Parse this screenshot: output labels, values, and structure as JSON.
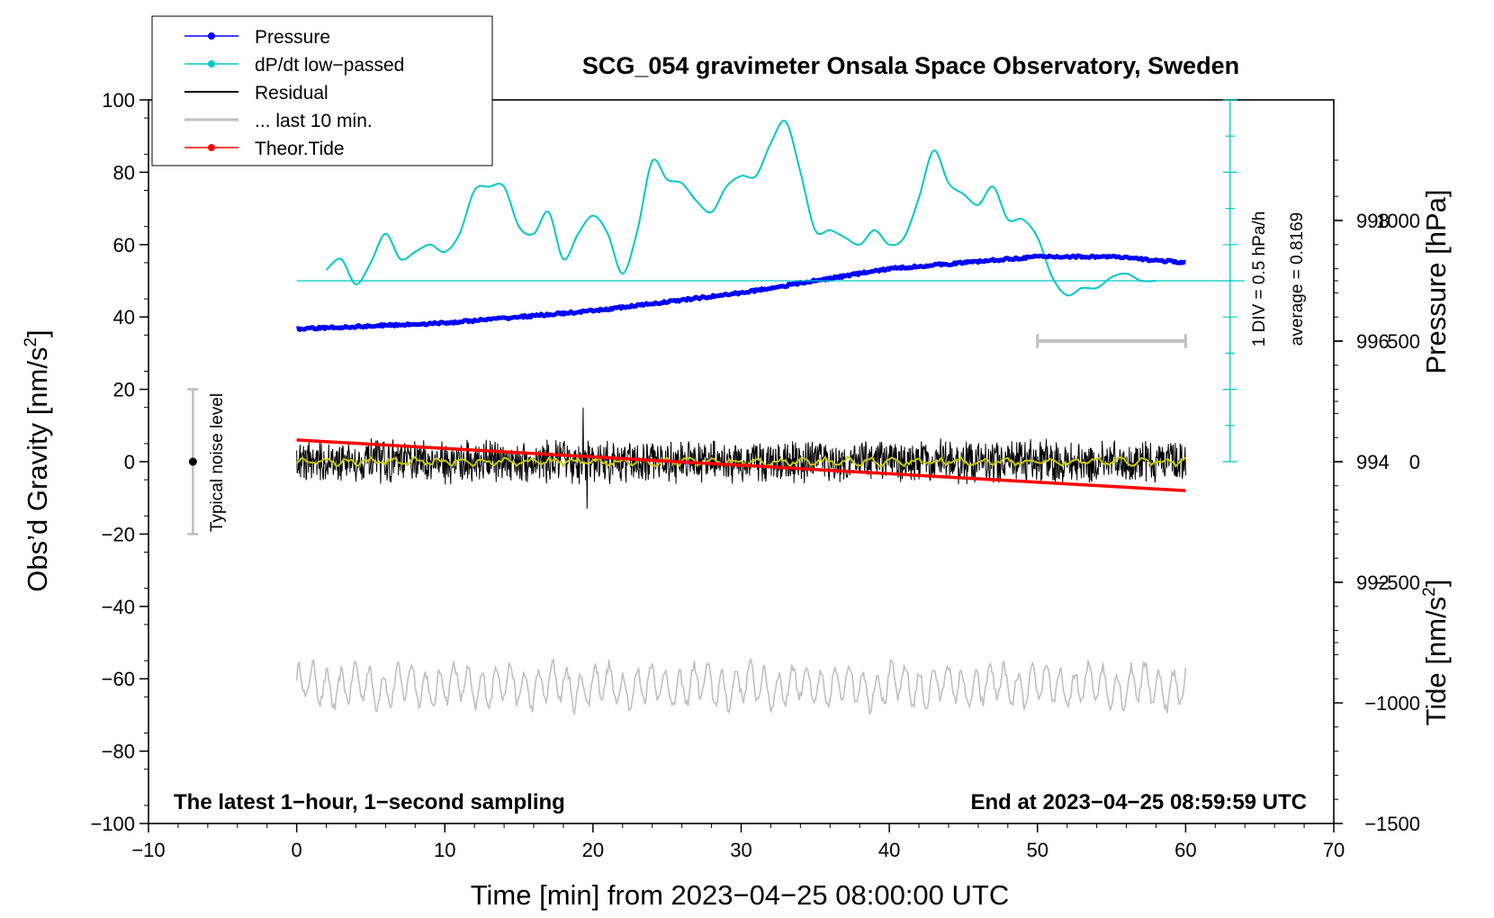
{
  "chart_data": {
    "type": "line",
    "title": "SCG_054 gravimeter Onsala Space Observatory, Sweden",
    "xlabel": "Time [min] from 2023−04−25 08:00:00 UTC",
    "ylabel_main": "Obs’d Gravity [nm/s",
    "ylabel_pressure": "Pressure [hPa]",
    "ylabel_tide": "Tide [nm/s",
    "unit_superscript": "2",
    "unit_close": "]",
    "xlim": [
      -10,
      70
    ],
    "ylim_gravity": [
      -100,
      100
    ],
    "ylim_pressure": [
      988,
      1000
    ],
    "ylim_tide": [
      -1500,
      1500
    ],
    "x_ticks": [
      "−10",
      "0",
      "10",
      "20",
      "30",
      "40",
      "50",
      "60",
      "70"
    ],
    "x_tick_values": [
      -10,
      0,
      10,
      20,
      30,
      40,
      50,
      60,
      70
    ],
    "y_ticks": [
      "100",
      "80",
      "60",
      "40",
      "20",
      "0",
      "−20",
      "−40",
      "−60",
      "−80",
      "−100"
    ],
    "y_tick_values": [
      100,
      80,
      60,
      40,
      20,
      0,
      -20,
      -40,
      -60,
      -80,
      -100
    ],
    "pressure_ticks": [
      "998",
      "996",
      "994",
      "992"
    ],
    "pressure_tick_values": [
      998,
      996,
      994,
      992
    ],
    "tide_ticks": [
      "1000",
      "500",
      "0",
      "−500",
      "−1000",
      "−1500"
    ],
    "tide_tick_values": [
      1000,
      500,
      0,
      -500,
      -1000,
      -1500
    ],
    "legend": {
      "placement": "top-left",
      "entries": [
        {
          "label": "Pressure",
          "color": "#0000ff",
          "marker": "dot"
        },
        {
          "label": "dP/dt low−passed",
          "color": "#00c8c8",
          "marker": "dot"
        },
        {
          "label": "Residual",
          "color": "#000000",
          "marker": "none"
        },
        {
          "label": "... last 10 min.",
          "color": "#c0c0c0",
          "marker": "none"
        },
        {
          "label": "Theor.Tide",
          "color": "#ff0000",
          "marker": "dot"
        }
      ]
    },
    "annotations": {
      "sampling": "The latest 1−hour, 1−second sampling",
      "end_time": "End at 2023−04−25 08:59:59 UTC",
      "noise_label": "Typical noise level",
      "noise_range": [
        -20,
        20
      ],
      "noise_x": -7,
      "div_label": "1 DIV = 0.5 hPa/h",
      "average_label": "average = 0.8169",
      "dpdt_baseline_gravity": 50,
      "dpdt_scale_x": 63,
      "dpdt_scale_range": [
        0,
        100
      ],
      "last10_bar_minutes": [
        50,
        60
      ],
      "last10_bar_tide": 500
    },
    "series": [
      {
        "name": "Pressure",
        "color": "#0000ff",
        "axis": "pressure",
        "x": [
          0,
          10,
          20,
          30,
          40,
          50,
          55,
          60
        ],
        "values": [
          996.2,
          996.3,
          996.5,
          996.8,
          997.2,
          997.4,
          997.4,
          997.3
        ]
      },
      {
        "name": "dP/dt low−passed",
        "color": "#00c8c8",
        "axis": "gravity",
        "x": [
          2,
          3,
          4,
          5,
          6,
          7,
          8,
          9,
          10,
          11,
          12,
          13,
          14,
          15,
          16,
          17,
          18,
          19,
          20,
          21,
          22,
          23,
          24,
          25,
          26,
          27,
          28,
          29,
          30,
          31,
          32,
          33,
          34,
          35,
          36,
          37,
          38,
          39,
          40,
          41,
          42,
          43,
          44,
          45,
          46,
          47,
          48,
          49,
          50,
          51,
          52,
          53,
          54,
          55,
          56,
          57,
          58
        ],
        "values": [
          53,
          56,
          49,
          55,
          63,
          56,
          58,
          60,
          58,
          63,
          75,
          76,
          76,
          65,
          63,
          69,
          56,
          63,
          68,
          63,
          52,
          64,
          83,
          78,
          77,
          72,
          69,
          76,
          79,
          79,
          88,
          94,
          80,
          64,
          64,
          62,
          60,
          64,
          60,
          62,
          73,
          86,
          77,
          74,
          71,
          76,
          67,
          67,
          62,
          51,
          46,
          48,
          48,
          51,
          52,
          50,
          50
        ]
      },
      {
        "name": "Residual",
        "color": "#000000",
        "axis": "gravity",
        "x": [
          0,
          60
        ],
        "values": [
          0,
          0
        ],
        "noise_amplitude": 5
      },
      {
        "name": "Residual smoothed",
        "color": "#c8c800",
        "axis": "gravity",
        "x": [
          0,
          60
        ],
        "values": [
          0,
          0
        ]
      },
      {
        "name": "... last 10 min.",
        "color": "#c0c0c0",
        "axis": "gravity",
        "x": [
          0,
          60
        ],
        "values": [
          -62,
          -62
        ],
        "noise_amplitude": 7
      },
      {
        "name": "Theor.Tide",
        "color": "#ff0000",
        "axis": "tide",
        "x": [
          0,
          60
        ],
        "values": [
          90,
          -120
        ]
      }
    ]
  }
}
